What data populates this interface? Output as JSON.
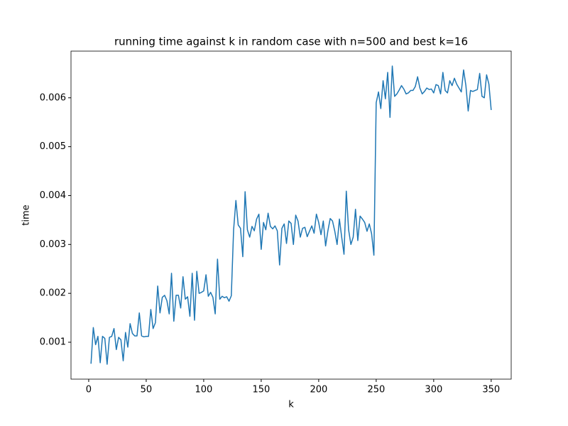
{
  "chart_data": {
    "type": "line",
    "title": "running time against k in random case with n=500 and best k=16",
    "x_label": "k",
    "y_label": "time",
    "x": [
      2,
      4,
      6,
      8,
      10,
      12,
      14,
      16,
      18,
      20,
      22,
      24,
      26,
      28,
      30,
      32,
      34,
      36,
      38,
      40,
      42,
      44,
      46,
      48,
      50,
      52,
      54,
      56,
      58,
      60,
      62,
      64,
      66,
      68,
      70,
      72,
      74,
      76,
      78,
      80,
      82,
      84,
      86,
      88,
      90,
      92,
      94,
      96,
      98,
      100,
      102,
      104,
      106,
      108,
      110,
      112,
      114,
      116,
      118,
      120,
      122,
      124,
      126,
      128,
      130,
      132,
      134,
      136,
      138,
      140,
      142,
      144,
      146,
      148,
      150,
      152,
      154,
      156,
      158,
      160,
      162,
      164,
      166,
      168,
      170,
      172,
      174,
      176,
      178,
      180,
      182,
      184,
      186,
      188,
      190,
      192,
      194,
      196,
      198,
      200,
      202,
      204,
      206,
      208,
      210,
      212,
      214,
      216,
      218,
      220,
      222,
      224,
      226,
      228,
      230,
      232,
      234,
      236,
      238,
      240,
      242,
      244,
      246,
      248,
      250,
      252,
      254,
      256,
      258,
      260,
      262,
      264,
      266,
      268,
      270,
      272,
      274,
      276,
      278,
      280,
      282,
      284,
      286,
      288,
      290,
      292,
      294,
      296,
      298,
      300,
      302,
      304,
      306,
      308,
      310,
      312,
      314,
      316,
      318,
      320,
      322,
      324,
      326,
      328,
      330,
      332,
      334,
      336,
      338,
      340,
      342,
      344,
      346,
      348,
      350
    ],
    "series": [
      {
        "name": "time",
        "color": "#1f77b4",
        "values": [
          0.00056,
          0.0013,
          0.00095,
          0.00112,
          0.00058,
          0.00112,
          0.00108,
          0.00055,
          0.0011,
          0.00112,
          0.00128,
          0.00085,
          0.0011,
          0.00105,
          0.00062,
          0.0012,
          0.0009,
          0.00138,
          0.00118,
          0.00113,
          0.00113,
          0.0016,
          0.00113,
          0.00111,
          0.00112,
          0.00112,
          0.00167,
          0.00128,
          0.0014,
          0.00215,
          0.0016,
          0.00192,
          0.00196,
          0.00185,
          0.00158,
          0.00241,
          0.00143,
          0.00196,
          0.00196,
          0.0017,
          0.00234,
          0.00188,
          0.00193,
          0.00153,
          0.00241,
          0.00145,
          0.00245,
          0.002,
          0.00202,
          0.00205,
          0.00238,
          0.00194,
          0.00202,
          0.00192,
          0.00158,
          0.0027,
          0.00188,
          0.00194,
          0.00191,
          0.00193,
          0.00184,
          0.00195,
          0.0033,
          0.0039,
          0.0034,
          0.00333,
          0.00275,
          0.00408,
          0.0033,
          0.00315,
          0.00337,
          0.00328,
          0.00352,
          0.00362,
          0.0029,
          0.00345,
          0.0033,
          0.00364,
          0.00337,
          0.00332,
          0.00338,
          0.00328,
          0.00258,
          0.00333,
          0.00342,
          0.00302,
          0.00348,
          0.00343,
          0.003,
          0.0036,
          0.00348,
          0.00315,
          0.00333,
          0.00335,
          0.00316,
          0.00327,
          0.00338,
          0.00323,
          0.00362,
          0.00345,
          0.0032,
          0.00348,
          0.00297,
          0.00328,
          0.00353,
          0.00348,
          0.00327,
          0.003,
          0.00352,
          0.00315,
          0.0028,
          0.00409,
          0.0033,
          0.003,
          0.00315,
          0.00372,
          0.00308,
          0.00358,
          0.00352,
          0.00345,
          0.00327,
          0.00342,
          0.00322,
          0.00278,
          0.0059,
          0.00612,
          0.00578,
          0.00635,
          0.00598,
          0.00652,
          0.0056,
          0.00665,
          0.00603,
          0.00608,
          0.00616,
          0.00625,
          0.00618,
          0.00608,
          0.0061,
          0.00615,
          0.00615,
          0.00623,
          0.00643,
          0.0062,
          0.00608,
          0.00613,
          0.0062,
          0.00617,
          0.00618,
          0.0061,
          0.00627,
          0.00625,
          0.00608,
          0.00652,
          0.00615,
          0.0061,
          0.00635,
          0.00625,
          0.0064,
          0.00628,
          0.0062,
          0.00612,
          0.00657,
          0.00625,
          0.00573,
          0.00615,
          0.00613,
          0.00615,
          0.00617,
          0.0065,
          0.00603,
          0.006,
          0.00647,
          0.00628,
          0.00575
        ]
      }
    ],
    "xlim": [
      -15.4,
      367.4
    ],
    "xticks": [
      0,
      50,
      100,
      150,
      200,
      250,
      300,
      350
    ],
    "ylim": [
      0.000245,
      0.006955
    ],
    "yticks": [
      0.001,
      0.002,
      0.003,
      0.004,
      0.005,
      0.006
    ],
    "grid": false
  }
}
